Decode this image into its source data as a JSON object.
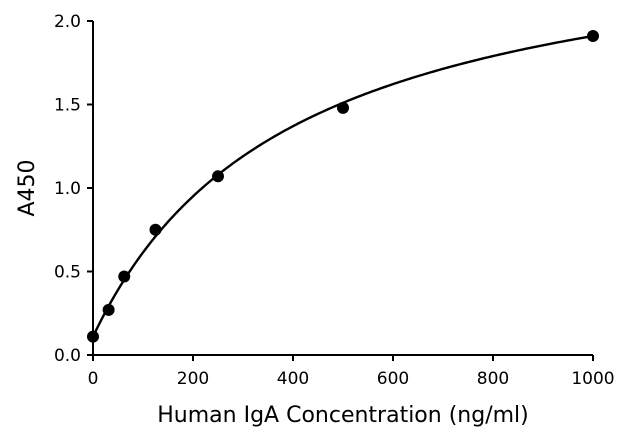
{
  "chart_data": {
    "type": "scatter",
    "title": "",
    "xlabel": "Human IgA Concentration (ng/ml)",
    "ylabel": "A450",
    "xlim": [
      0,
      1000
    ],
    "ylim": [
      0,
      2.0
    ],
    "x_ticks": [
      "0",
      "200",
      "400",
      "600",
      "800",
      "1000"
    ],
    "y_ticks": [
      "0.0",
      "0.5",
      "1.0",
      "1.5",
      "2.0"
    ],
    "grid": false,
    "series": [
      {
        "x": [
          0,
          31.25,
          62.5,
          125,
          250,
          500,
          1000
        ],
        "y": [
          0.11,
          0.27,
          0.47,
          0.75,
          1.07,
          1.48,
          1.91
        ],
        "marker_color": "#000000",
        "fit_line": true
      }
    ]
  }
}
